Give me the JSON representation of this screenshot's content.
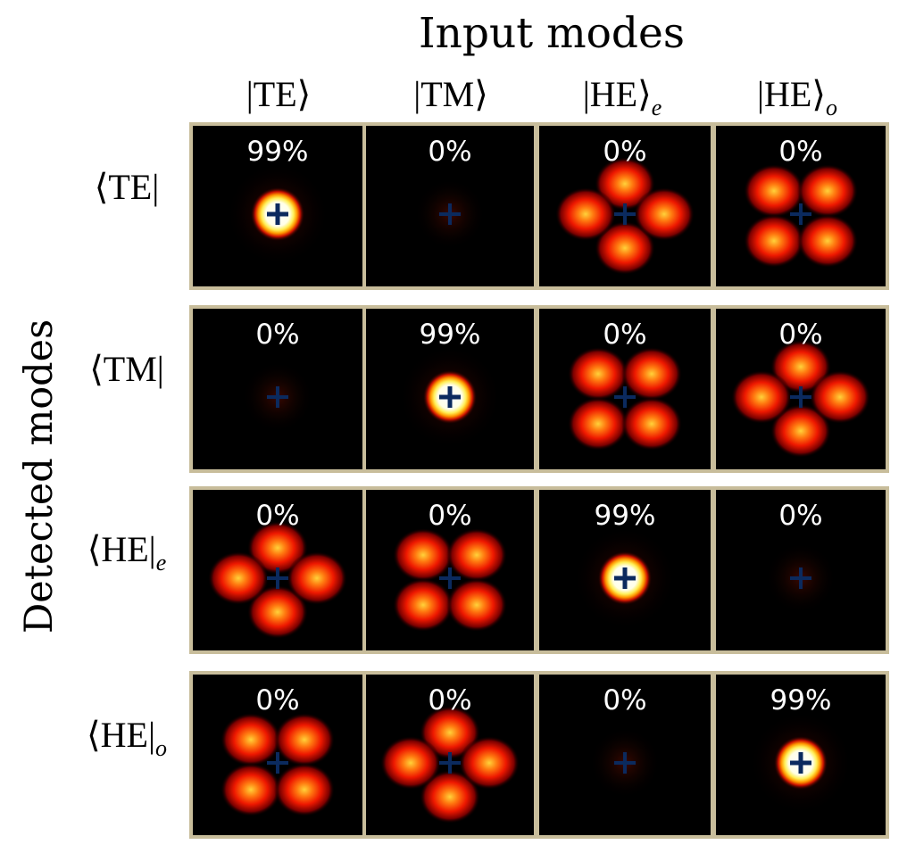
{
  "title": "Input modes",
  "y_axis_label": "Detected modes",
  "columns": [
    {
      "label": "|TE⟩",
      "sub": ""
    },
    {
      "label": "|TM⟩",
      "sub": ""
    },
    {
      "label": "|HE⟩",
      "sub": "e"
    },
    {
      "label": "|HE⟩",
      "sub": "o"
    }
  ],
  "rows": [
    {
      "label": "⟨TE|",
      "sub": "",
      "cells": [
        {
          "value": "99%",
          "pattern": "gaussian"
        },
        {
          "value": "0%",
          "pattern": "faint"
        },
        {
          "value": "0%",
          "pattern": "plus-lobes"
        },
        {
          "value": "0%",
          "pattern": "x-lobes"
        }
      ]
    },
    {
      "label": "⟨TM|",
      "sub": "",
      "cells": [
        {
          "value": "0%",
          "pattern": "faint"
        },
        {
          "value": "99%",
          "pattern": "gaussian"
        },
        {
          "value": "0%",
          "pattern": "x-lobes"
        },
        {
          "value": "0%",
          "pattern": "plus-lobes"
        }
      ]
    },
    {
      "label": "⟨HE|",
      "sub": "e",
      "cells": [
        {
          "value": "0%",
          "pattern": "plus-lobes"
        },
        {
          "value": "0%",
          "pattern": "x-lobes"
        },
        {
          "value": "99%",
          "pattern": "gaussian"
        },
        {
          "value": "0%",
          "pattern": "faint"
        }
      ]
    },
    {
      "label": "⟨HE|",
      "sub": "o",
      "cells": [
        {
          "value": "0%",
          "pattern": "x-lobes"
        },
        {
          "value": "0%",
          "pattern": "plus-lobes"
        },
        {
          "value": "0%",
          "pattern": "faint"
        },
        {
          "value": "99%",
          "pattern": "gaussian"
        }
      ]
    }
  ],
  "colors": {
    "frame": "#c8bd9b",
    "background": "#000000",
    "cross": "#0b2a5e",
    "lobe_core": "#ffcc33",
    "lobe_mid": "#ff2200",
    "lobe_edge": "#7a0000"
  }
}
